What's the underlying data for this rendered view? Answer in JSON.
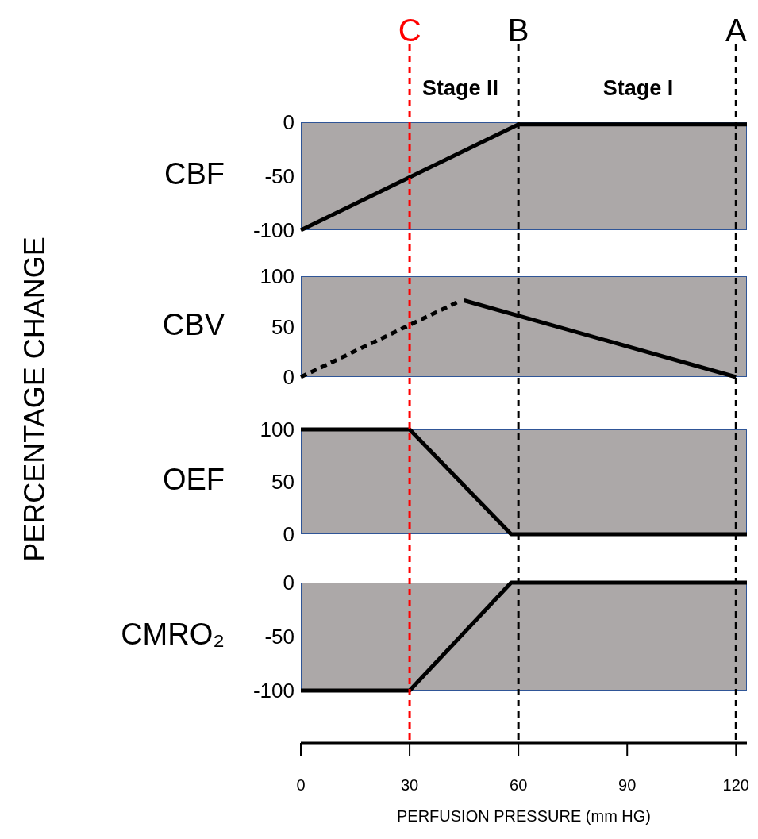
{
  "chart_data": [
    {
      "type": "line",
      "title": "CBF",
      "ylabel": "PERCENTAGE CHANGE",
      "xlim": [
        0,
        123
      ],
      "ylim": [
        -100,
        0
      ],
      "yticks": [
        -100,
        -50,
        0
      ],
      "tick_labels": "y",
      "grid": false,
      "legend": false,
      "marker": "none",
      "line_style": "solid",
      "series": [
        {
          "color": "#000000",
          "x": [
            0,
            60,
            123
          ],
          "values": [
            -100,
            -2,
            -2
          ]
        }
      ],
      "ref_lines": [
        {
          "axis": "x",
          "value": 30,
          "label": "C",
          "color": "#ff0000",
          "line_style": "dashed"
        },
        {
          "axis": "x",
          "value": 60,
          "label": "B",
          "color": "#000000",
          "line_style": "dashed"
        },
        {
          "axis": "x",
          "value": 120,
          "label": "A",
          "color": "#000000",
          "line_style": "dashed"
        }
      ],
      "annotations": [
        "Stage II",
        "Stage I"
      ]
    },
    {
      "type": "line",
      "title": "CBV",
      "xlim": [
        0,
        123
      ],
      "ylim": [
        0,
        100
      ],
      "yticks": [
        0,
        50,
        100
      ],
      "tick_labels": "y",
      "grid": false,
      "legend": false,
      "marker": "none",
      "series": [
        {
          "color": "#000000",
          "line_style": "dashed",
          "x": [
            0,
            43
          ],
          "values": [
            0,
            74
          ]
        },
        {
          "color": "#000000",
          "line_style": "solid",
          "x": [
            45,
            120
          ],
          "values": [
            76,
            0
          ]
        }
      ]
    },
    {
      "type": "line",
      "title": "OEF",
      "xlim": [
        0,
        123
      ],
      "ylim": [
        0,
        100
      ],
      "yticks": [
        0,
        50,
        100
      ],
      "tick_labels": "y",
      "grid": false,
      "legend": false,
      "marker": "none",
      "line_style": "solid",
      "series": [
        {
          "color": "#000000",
          "x": [
            0,
            30,
            58,
            123
          ],
          "values": [
            100,
            100,
            0,
            0
          ]
        }
      ]
    },
    {
      "type": "line",
      "title": "CMRO₂",
      "xlabel": "PERFUSION PRESSURE (mm HG)",
      "xlim": [
        0,
        123
      ],
      "ylim": [
        -100,
        0
      ],
      "yticks": [
        -100,
        -50,
        0
      ],
      "xticks": [
        0,
        30,
        60,
        90,
        120
      ],
      "grid": false,
      "legend": false,
      "marker": "none",
      "line_style": "solid",
      "series": [
        {
          "color": "#000000",
          "x": [
            0,
            30,
            58,
            123
          ],
          "values": [
            -100,
            -100,
            0,
            0
          ]
        }
      ]
    }
  ]
}
